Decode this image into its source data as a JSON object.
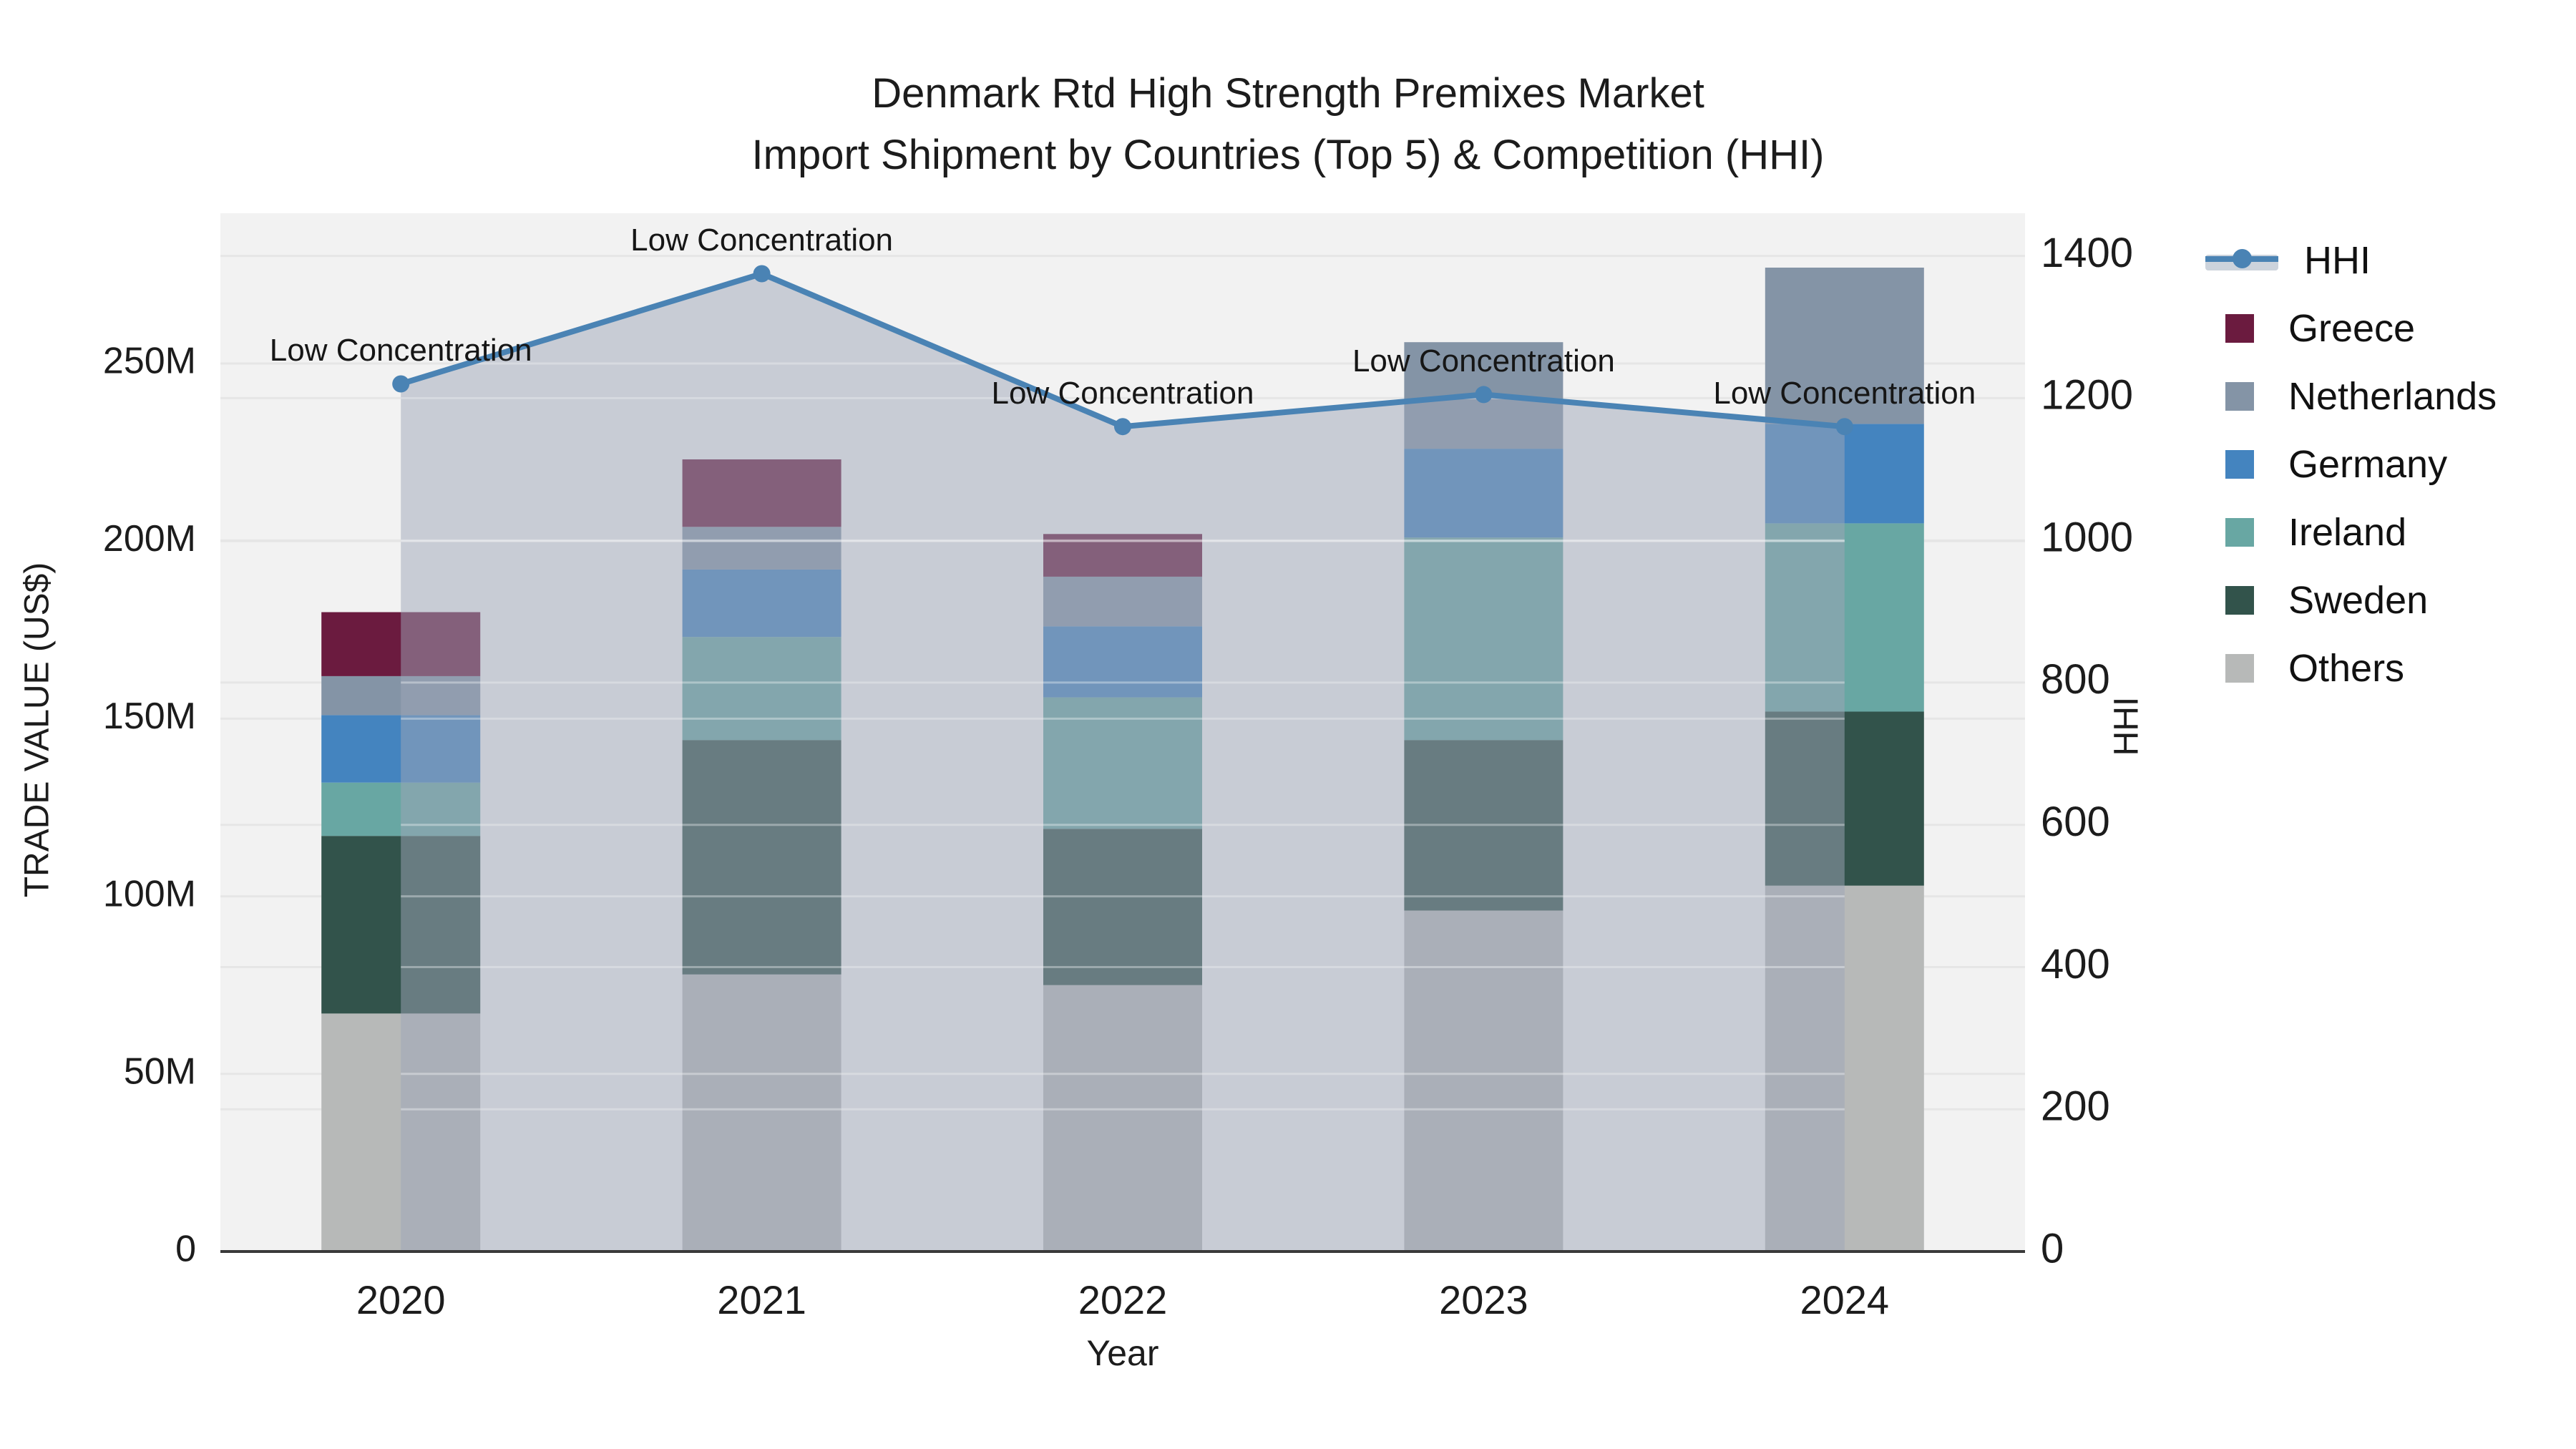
{
  "chart_data": {
    "type": "combo-stacked-bar-line-area",
    "title": {
      "line1": "Denmark Rtd High Strength Premixes Market",
      "line2": "Import Shipment by Countries (Top 5) & Competition (HHI)"
    },
    "xlabel": "Year",
    "categories": [
      "2020",
      "2021",
      "2022",
      "2023",
      "2024"
    ],
    "y_left": {
      "label": "TRADE VALUE (US$)",
      "unit": "millions USD",
      "max": 292.3,
      "ticks": [
        {
          "value": 0,
          "label": "0"
        },
        {
          "value": 50,
          "label": "50M"
        },
        {
          "value": 100,
          "label": "100M"
        },
        {
          "value": 150,
          "label": "150M"
        },
        {
          "value": 200,
          "label": "200M"
        },
        {
          "value": 250,
          "label": "250M"
        }
      ]
    },
    "y_right": {
      "label": "HHI",
      "max": 1460,
      "ticks": [
        {
          "value": 0,
          "label": "0"
        },
        {
          "value": 200,
          "label": "200"
        },
        {
          "value": 400,
          "label": "400"
        },
        {
          "value": 600,
          "label": "600"
        },
        {
          "value": 800,
          "label": "800"
        },
        {
          "value": 1000,
          "label": "1000"
        },
        {
          "value": 1200,
          "label": "1200"
        },
        {
          "value": 1400,
          "label": "1400"
        }
      ]
    },
    "series": [
      {
        "name": "Others",
        "color": "#b7b9b8",
        "values": [
          67,
          78,
          75,
          96,
          103
        ]
      },
      {
        "name": "Sweden",
        "color": "#32534b",
        "values": [
          50,
          66,
          44,
          48,
          49
        ]
      },
      {
        "name": "Ireland",
        "color": "#68a7a3",
        "values": [
          15,
          29,
          37,
          57,
          53
        ]
      },
      {
        "name": "Germany",
        "color": "#4484bf",
        "values": [
          19,
          19,
          20,
          25,
          28
        ]
      },
      {
        "name": "Netherlands",
        "color": "#8494a6",
        "values": [
          11,
          12,
          14,
          30,
          44
        ]
      },
      {
        "name": "Greece",
        "color": "#6b1b3f",
        "values": [
          18,
          19,
          12,
          0,
          0
        ]
      }
    ],
    "line": {
      "name": "HHI",
      "color": "#4a83b4",
      "area_fill": "rgba(158,165,184,0.5)",
      "values": [
        1220,
        1375,
        1160,
        1205,
        1160
      ],
      "annotations": [
        "Low Concentration",
        "Low Concentration",
        "Low Concentration",
        "Low Concentration",
        "Low Concentration"
      ]
    },
    "legend": {
      "order": [
        "HHI",
        "Greece",
        "Netherlands",
        "Germany",
        "Ireland",
        "Sweden",
        "Others"
      ],
      "hhi_band_color": "#ccd3dc"
    },
    "style": {
      "plot_bg": "#f2f2f2",
      "grid_color": "#e6e6e6",
      "axis_line_color": "#3a3a3a",
      "text_color": "#1c1c1c"
    }
  }
}
